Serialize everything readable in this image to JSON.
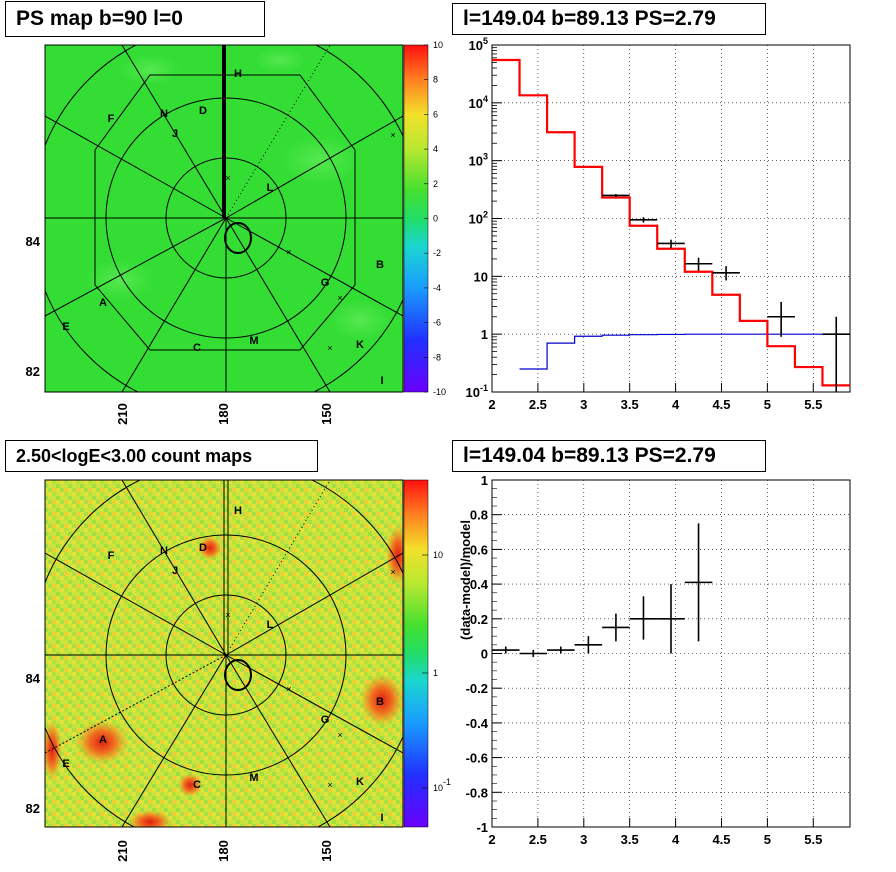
{
  "panels": {
    "tl": {
      "title": "PS map b=90 l=0"
    },
    "tr": {
      "title": "l=149.04 b=89.13 PS=2.79"
    },
    "bl": {
      "title": "2.50<logE<3.00 count maps"
    },
    "br": {
      "title": "l=149.04 b=89.13 PS=2.79"
    }
  },
  "colors": {
    "ps_map_bg": "#33dd33",
    "count_map_bg": "#c8e23a",
    "model_line": "#ff0000",
    "background_line": "#0000cc",
    "data_marker": "#000000"
  },
  "chart_data": [
    {
      "id": "ps-map",
      "type": "heatmap",
      "title": "PS map b=90 l=0",
      "x_tick_labels": [
        "210",
        "180",
        "150"
      ],
      "y_tick_labels": [
        "84",
        "82"
      ],
      "colorbar": {
        "min": -10,
        "max": 10,
        "ticks": [
          "10",
          "8",
          "6",
          "4",
          "2",
          "0",
          "-2",
          "-4",
          "-6",
          "-8",
          "-10"
        ]
      },
      "source_labels": [
        "H",
        "F",
        "N",
        "D",
        "J",
        "L",
        "B",
        "G",
        "A",
        "E",
        "C",
        "M",
        "K",
        "I"
      ]
    },
    {
      "id": "spectrum",
      "type": "line",
      "title": "l=149.04 b=89.13 PS=2.79",
      "log_y": true,
      "xlim": [
        2,
        5.9
      ],
      "ylim": [
        0.1,
        100000
      ],
      "x_tick_labels": [
        "2",
        "2.5",
        "3",
        "3.5",
        "4",
        "4.5",
        "5",
        "5.5"
      ],
      "y_tick_labels": [
        "10^5",
        "10^4",
        "10^3",
        "10^2",
        "10",
        "1",
        "10^-1"
      ],
      "grid": true,
      "model_step": {
        "edges": [
          2,
          2.3,
          2.6,
          2.9,
          3.2,
          3.5,
          3.8,
          4.1,
          4.4,
          4.7,
          5.0,
          5.3,
          5.6,
          5.9
        ],
        "values": [
          55000,
          13500,
          3100,
          780,
          230,
          75,
          30,
          12,
          4.8,
          1.7,
          0.62,
          0.27,
          0.13
        ]
      },
      "background_step": {
        "edges": [
          2.3,
          2.6,
          2.9,
          3.2,
          3.5,
          3.8,
          4.1,
          4.4,
          4.7,
          5.0,
          5.3,
          5.6,
          5.9
        ],
        "values": [
          0.25,
          0.7,
          0.92,
          0.96,
          0.98,
          0.99,
          1.0,
          1.0,
          1.0,
          1.0,
          1.0,
          1.0
        ]
      },
      "data_points": [
        {
          "x": 3.35,
          "y": 250,
          "xerr": 0.15,
          "ylo": 235,
          "yhi": 265
        },
        {
          "x": 3.65,
          "y": 95,
          "xerr": 0.15,
          "ylo": 85,
          "yhi": 105
        },
        {
          "x": 3.95,
          "y": 37,
          "xerr": 0.15,
          "ylo": 31,
          "yhi": 43
        },
        {
          "x": 4.25,
          "y": 16.5,
          "xerr": 0.15,
          "ylo": 12.5,
          "yhi": 21
        },
        {
          "x": 4.55,
          "y": 11.5,
          "xerr": 0.15,
          "ylo": 8.5,
          "yhi": 15
        },
        {
          "x": 5.15,
          "y": 2.0,
          "xerr": 0.15,
          "ylo": 0.9,
          "yhi": 3.6
        },
        {
          "x": 5.75,
          "y": 1.0,
          "xerr": 0.15,
          "ylo": 0.1,
          "yhi": 2.0
        }
      ]
    },
    {
      "id": "count-map",
      "type": "heatmap",
      "title": "2.50<logE<3.00 count maps",
      "x_tick_labels": [
        "210",
        "180",
        "150"
      ],
      "y_tick_labels": [
        "84",
        "82"
      ],
      "colorbar": {
        "log": true,
        "ticks": [
          "10",
          "1",
          "10^-1"
        ]
      },
      "source_labels": [
        "H",
        "F",
        "N",
        "D",
        "J",
        "L",
        "B",
        "G",
        "A",
        "E",
        "C",
        "M",
        "K",
        "I"
      ]
    },
    {
      "id": "residuals",
      "type": "scatter",
      "title": "l=149.04 b=89.13 PS=2.79",
      "ylabel": "(data-model)/model",
      "xlim": [
        2,
        5.9
      ],
      "ylim": [
        -1,
        1
      ],
      "x_tick_labels": [
        "2",
        "2.5",
        "3",
        "3.5",
        "4",
        "4.5",
        "5",
        "5.5"
      ],
      "y_tick_labels": [
        "1",
        "0.8",
        "0.6",
        "0.4",
        "0.2",
        "0",
        "-0.2",
        "-0.4",
        "-0.6",
        "-0.8",
        "-1"
      ],
      "grid": true,
      "points": [
        {
          "x": 2.15,
          "y": 0.02,
          "xerr": 0.15,
          "ylo": 0.0,
          "yhi": 0.04
        },
        {
          "x": 2.45,
          "y": 0.0,
          "xerr": 0.15,
          "ylo": -0.02,
          "yhi": 0.02
        },
        {
          "x": 2.75,
          "y": 0.02,
          "xerr": 0.15,
          "ylo": 0.0,
          "yhi": 0.04
        },
        {
          "x": 3.05,
          "y": 0.05,
          "xerr": 0.15,
          "ylo": 0.0,
          "yhi": 0.1
        },
        {
          "x": 3.35,
          "y": 0.15,
          "xerr": 0.15,
          "ylo": 0.07,
          "yhi": 0.23
        },
        {
          "x": 3.65,
          "y": 0.2,
          "xerr": 0.15,
          "ylo": 0.08,
          "yhi": 0.33
        },
        {
          "x": 3.95,
          "y": 0.2,
          "xerr": 0.15,
          "ylo": 0.0,
          "yhi": 0.4
        },
        {
          "x": 4.25,
          "y": 0.41,
          "xerr": 0.15,
          "ylo": 0.07,
          "yhi": 0.75
        }
      ]
    }
  ]
}
